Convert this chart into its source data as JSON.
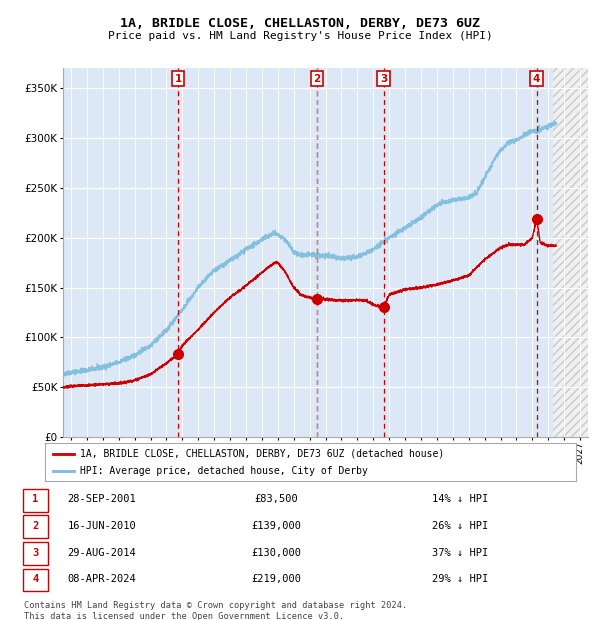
{
  "title": "1A, BRIDLE CLOSE, CHELLASTON, DERBY, DE73 6UZ",
  "subtitle": "Price paid vs. HM Land Registry's House Price Index (HPI)",
  "footer": "Contains HM Land Registry data © Crown copyright and database right 2024.\nThis data is licensed under the Open Government Licence v3.0.",
  "legend_property": "1A, BRIDLE CLOSE, CHELLASTON, DERBY, DE73 6UZ (detached house)",
  "legend_hpi": "HPI: Average price, detached house, City of Derby",
  "ylim": [
    0,
    370000
  ],
  "yticks": [
    0,
    50000,
    100000,
    150000,
    200000,
    250000,
    300000,
    350000
  ],
  "xlim_start": 1994.5,
  "xlim_end": 2027.5,
  "plot_bg": "#dce8f5",
  "grid_color": "#ffffff",
  "hpi_color": "#7bbcdc",
  "property_color": "#cc0000",
  "vline_color_sale": "#cc0000",
  "vline_color_gray": "#999999",
  "transactions": [
    {
      "num": 1,
      "date": "28-SEP-2001",
      "price": 83500,
      "year": 2001.74,
      "pct": "14% ↓ HPI"
    },
    {
      "num": 2,
      "date": "16-JUN-2010",
      "price": 139000,
      "year": 2010.45,
      "pct": "26% ↓ HPI"
    },
    {
      "num": 3,
      "date": "29-AUG-2014",
      "price": 130000,
      "year": 2014.66,
      "pct": "37% ↓ HPI"
    },
    {
      "num": 4,
      "date": "08-APR-2024",
      "price": 219000,
      "year": 2024.27,
      "pct": "29% ↓ HPI"
    }
  ],
  "future_shade_start": 2025.3
}
